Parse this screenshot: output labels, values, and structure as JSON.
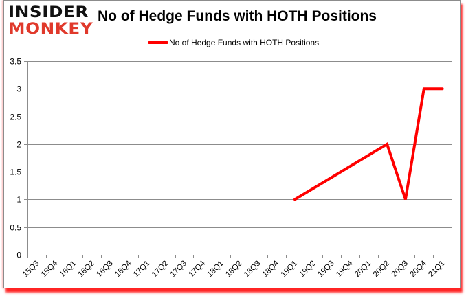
{
  "brand": {
    "logo_line1": "INSIDER",
    "logo_line2": "MONKEY",
    "logo_line1_color": "#111111",
    "logo_line2_color": "#e0392b"
  },
  "chart_data": {
    "type": "line",
    "title": "No of Hedge Funds with HOTH Positions",
    "xlabel": "",
    "ylabel": "",
    "ylim": [
      0,
      3.5
    ],
    "yticks": [
      0,
      0.5,
      1,
      1.5,
      2,
      2.5,
      3,
      3.5
    ],
    "ytick_labels": [
      "0",
      "0.5",
      "1",
      "1.5",
      "2",
      "2.5",
      "3",
      "3.5"
    ],
    "grid": {
      "horizontal": true,
      "vertical": false
    },
    "legend_position": "top-center",
    "categories": [
      "15Q3",
      "15Q4",
      "16Q1",
      "16Q2",
      "16Q3",
      "16Q4",
      "17Q1",
      "17Q2",
      "17Q3",
      "17Q4",
      "18Q1",
      "18Q2",
      "18Q3",
      "18Q4",
      "19Q1",
      "19Q2",
      "19Q3",
      "19Q4",
      "20Q1",
      "20Q2",
      "20Q3",
      "20Q4",
      "21Q1"
    ],
    "series": [
      {
        "name": "No of Hedge Funds with HOTH Positions",
        "color": "#ff0000",
        "values": [
          null,
          null,
          null,
          null,
          null,
          null,
          null,
          null,
          null,
          null,
          null,
          null,
          null,
          null,
          1,
          null,
          null,
          null,
          null,
          2,
          1,
          3,
          3
        ]
      }
    ]
  }
}
